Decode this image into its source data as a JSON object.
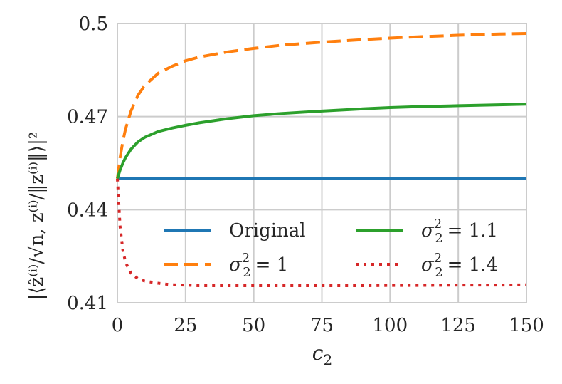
{
  "chart_data": {
    "type": "line",
    "title": "",
    "xlabel": "c₂",
    "ylabel": "|⟨ẑ⁽ⁱ⁾/√n, z⁽ⁱ⁾/‖z⁽ⁱ⁾‖⟩|²",
    "xlim": [
      0,
      150
    ],
    "ylim": [
      0.41,
      0.5
    ],
    "x_ticks": [
      0,
      25,
      50,
      75,
      100,
      125,
      150
    ],
    "x_tick_labels": [
      "0",
      "25",
      "50",
      "75",
      "100",
      "125",
      "150"
    ],
    "y_ticks": [
      0.41,
      0.44,
      0.47,
      0.5
    ],
    "y_tick_labels": [
      "0.41",
      "0.44",
      "0.47",
      "0.5"
    ],
    "grid": true,
    "legend_position": "lower-right",
    "x": [
      0,
      1,
      2,
      3,
      5,
      7.5,
      10,
      15,
      20,
      25,
      30,
      40,
      50,
      60,
      75,
      90,
      100,
      110,
      125,
      140,
      150
    ],
    "series": [
      {
        "name": "Original",
        "legend": {
          "base": "Original",
          "sup": "",
          "sub": "",
          "value": ""
        },
        "color": "#1f77b4",
        "style": "solid",
        "values": [
          0.45,
          0.45,
          0.45,
          0.45,
          0.45,
          0.45,
          0.45,
          0.45,
          0.45,
          0.45,
          0.45,
          0.45,
          0.45,
          0.45,
          0.45,
          0.45,
          0.45,
          0.45,
          0.45,
          0.45,
          0.45
        ]
      },
      {
        "name": "σ₂² = 1",
        "legend": {
          "base": "σ",
          "sup": "2",
          "sub": "2",
          "value": "= 1"
        },
        "color": "#ff7f0e",
        "style": "dashed",
        "values": [
          0.45,
          0.4568,
          0.462,
          0.466,
          0.4718,
          0.4768,
          0.48,
          0.484,
          0.4862,
          0.488,
          0.4892,
          0.4908,
          0.492,
          0.493,
          0.494,
          0.4948,
          0.4953,
          0.4957,
          0.4962,
          0.4966,
          0.4968
        ]
      },
      {
        "name": "σ₂² = 1.1",
        "legend": {
          "base": "σ",
          "sup": "2",
          "sub": "2",
          "value": "= 1.1"
        },
        "color": "#2ca02c",
        "style": "solid",
        "values": [
          0.45,
          0.4528,
          0.455,
          0.4568,
          0.4595,
          0.4618,
          0.4633,
          0.4652,
          0.4663,
          0.4672,
          0.468,
          0.4693,
          0.4703,
          0.471,
          0.4718,
          0.4725,
          0.4729,
          0.4732,
          0.4735,
          0.4738,
          0.474
        ]
      },
      {
        "name": "σ₂² = 1.4",
        "legend": {
          "base": "σ",
          "sup": "2",
          "sub": "2",
          "value": "= 1.4"
        },
        "color": "#d62728",
        "style": "dotted",
        "values": [
          0.45,
          0.4345,
          0.427,
          0.423,
          0.4195,
          0.4178,
          0.417,
          0.4163,
          0.4158,
          0.4157,
          0.4155,
          0.4155,
          0.4155,
          0.4155,
          0.4155,
          0.4155,
          0.4156,
          0.4156,
          0.4157,
          0.4157,
          0.4158
        ]
      }
    ]
  }
}
